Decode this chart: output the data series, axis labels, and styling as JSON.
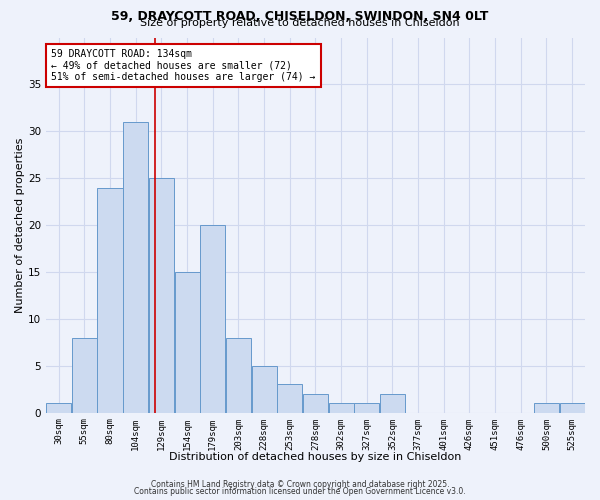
{
  "title_line1": "59, DRAYCOTT ROAD, CHISELDON, SWINDON, SN4 0LT",
  "title_line2": "Size of property relative to detached houses in Chiseldon",
  "xlabel": "Distribution of detached houses by size in Chiseldon",
  "ylabel": "Number of detached properties",
  "categories": [
    "30sqm",
    "55sqm",
    "80sqm",
    "104sqm",
    "129sqm",
    "154sqm",
    "179sqm",
    "203sqm",
    "228sqm",
    "253sqm",
    "278sqm",
    "302sqm",
    "327sqm",
    "352sqm",
    "377sqm",
    "401sqm",
    "426sqm",
    "451sqm",
    "476sqm",
    "500sqm",
    "525sqm"
  ],
  "values": [
    1,
    8,
    24,
    31,
    25,
    15,
    20,
    8,
    5,
    3,
    2,
    1,
    1,
    2,
    0,
    0,
    0,
    0,
    0,
    1,
    1
  ],
  "bar_color": "#ccdaf0",
  "bar_edge_color": "#6699cc",
  "ylim": [
    0,
    40
  ],
  "yticks": [
    0,
    5,
    10,
    15,
    20,
    25,
    30,
    35
  ],
  "red_line_index": 3.75,
  "annotation_text": "59 DRAYCOTT ROAD: 134sqm\n← 49% of detached houses are smaller (72)\n51% of semi-detached houses are larger (74) →",
  "annotation_box_color": "#ffffff",
  "annotation_box_edgecolor": "#cc0000",
  "red_line_color": "#cc0000",
  "footer_line1": "Contains HM Land Registry data © Crown copyright and database right 2025.",
  "footer_line2": "Contains public sector information licensed under the Open Government Licence v3.0.",
  "background_color": "#eef2fb",
  "grid_color": "#d0d8ee"
}
